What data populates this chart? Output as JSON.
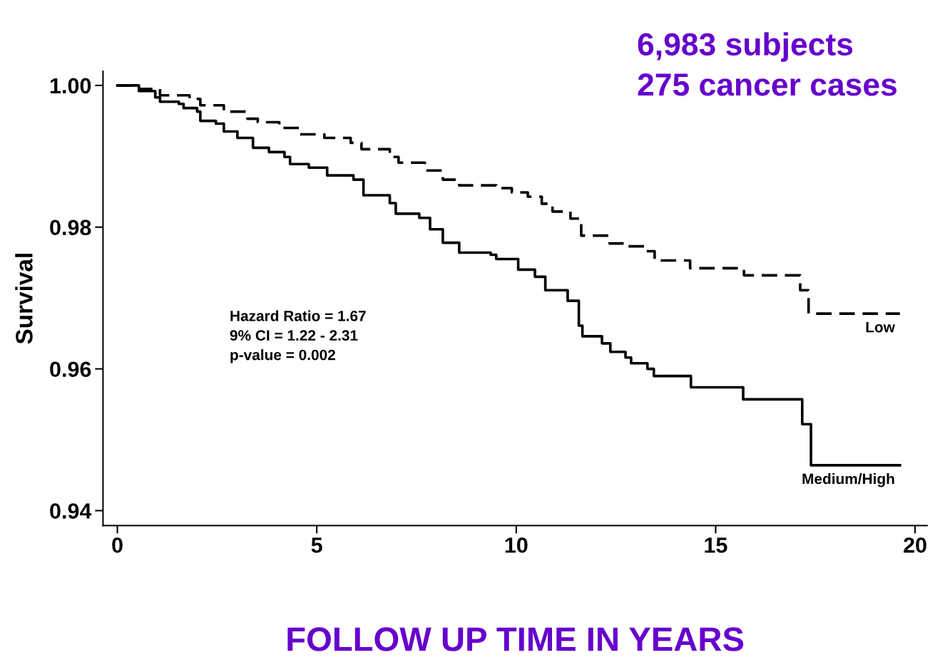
{
  "chart_data": {
    "type": "step",
    "xlabel": "FOLLOW UP TIME IN YEARS",
    "ylabel": "Survival",
    "xlim": [
      -0.36,
      20.3
    ],
    "ylim": [
      0.9379,
      1.002
    ],
    "xticks": [
      0,
      5,
      10,
      15,
      20
    ],
    "yticks": [
      0.94,
      0.96,
      0.98,
      {
        "value": 1.0,
        "label": "1.00"
      }
    ],
    "grid": false,
    "legend": false,
    "annotations": [
      "Hazard Ratio = 1.67",
      "9% CI = 1.22 - 2.31",
      "p-value = 0.002",
      "6,983 subjects",
      "275 cancer cases"
    ],
    "series": [
      {
        "name": "Low",
        "color": "#000000",
        "line_style": "dashed",
        "x": [
          0,
          0.54,
          1.07,
          1.81,
          2.08,
          2.67,
          3.26,
          3.52,
          4.06,
          4.58,
          5.19,
          5.85,
          6.12,
          6.83,
          7.05,
          7.71,
          8.16,
          8.57,
          9.5,
          9.89,
          10.29,
          10.64,
          10.91,
          11.36,
          11.63,
          12.34,
          12.7,
          13.24,
          13.47,
          14.36,
          15.71,
          17.12,
          17.33,
          19.62
        ],
        "values": [
          1.0,
          0.9995,
          0.9986,
          0.9981,
          0.9972,
          0.9963,
          0.9953,
          0.9948,
          0.994,
          0.9931,
          0.9926,
          0.9919,
          0.991,
          0.9899,
          0.9891,
          0.988,
          0.9867,
          0.9859,
          0.9855,
          0.9849,
          0.9843,
          0.9833,
          0.9822,
          0.9812,
          0.9788,
          0.9777,
          0.9773,
          0.9766,
          0.9753,
          0.9742,
          0.9732,
          0.9711,
          0.9678,
          0.9678
        ]
      },
      {
        "name": "Medium/High",
        "color": "#000000",
        "line_style": "solid",
        "x": [
          0,
          0.54,
          0.95,
          1.07,
          1.54,
          1.66,
          2.0,
          2.08,
          2.47,
          2.67,
          3.01,
          3.4,
          3.8,
          4.19,
          4.33,
          4.8,
          5.26,
          5.92,
          6.17,
          6.83,
          6.98,
          7.57,
          7.84,
          8.16,
          8.57,
          9.36,
          9.5,
          10.05,
          10.47,
          10.73,
          11.29,
          11.57,
          11.66,
          12.15,
          12.36,
          12.74,
          12.88,
          13.29,
          13.45,
          14.38,
          15.69,
          17.17,
          17.39,
          19.62
        ],
        "values": [
          1.0,
          0.9992,
          0.9983,
          0.9977,
          0.9974,
          0.9968,
          0.9963,
          0.995,
          0.9946,
          0.9935,
          0.9926,
          0.9912,
          0.9906,
          0.9899,
          0.9889,
          0.9884,
          0.9873,
          0.9867,
          0.9845,
          0.9834,
          0.9819,
          0.9813,
          0.9797,
          0.9778,
          0.9764,
          0.9761,
          0.9755,
          0.974,
          0.973,
          0.9711,
          0.9696,
          0.9661,
          0.9646,
          0.9636,
          0.9624,
          0.9616,
          0.9608,
          0.96,
          0.959,
          0.9574,
          0.9557,
          0.9522,
          0.9464,
          0.9464
        ]
      }
    ]
  }
}
